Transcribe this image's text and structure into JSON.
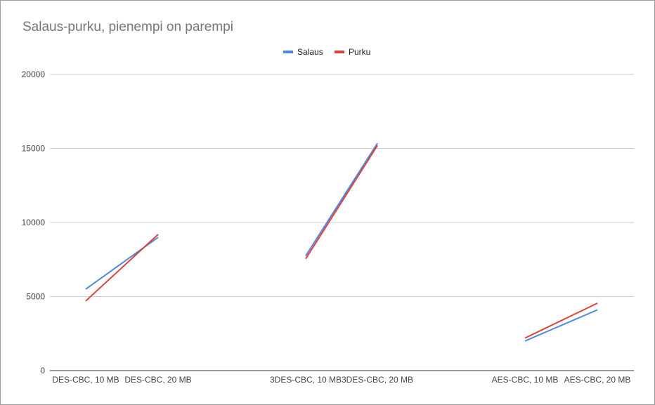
{
  "chart_data": {
    "type": "line",
    "title": "Salaus-purku, pienempi on parempi",
    "xlabel": "",
    "ylabel": "",
    "categories": [
      "DES-CBC, 10 MB",
      "DES-CBC, 20 MB",
      "3DES-CBC, 10 MB",
      "3DES-CBC, 20 MB",
      "AES-CBC, 10 MB",
      "AES-CBC, 20 MB"
    ],
    "groups": [
      [
        0,
        1
      ],
      [
        2,
        3
      ],
      [
        4,
        5
      ]
    ],
    "series": [
      {
        "name": "Salaus",
        "color": "#4a86e8",
        "values": [
          5500,
          9000,
          7750,
          15350,
          2000,
          4100
        ]
      },
      {
        "name": "Purku",
        "color": "#db4437",
        "values": [
          4700,
          9200,
          7550,
          15200,
          2200,
          4550
        ]
      }
    ],
    "ylim": [
      0,
      20000
    ],
    "yticks": [
      0,
      5000,
      10000,
      15000,
      20000
    ],
    "grid": true,
    "legend": "top"
  }
}
